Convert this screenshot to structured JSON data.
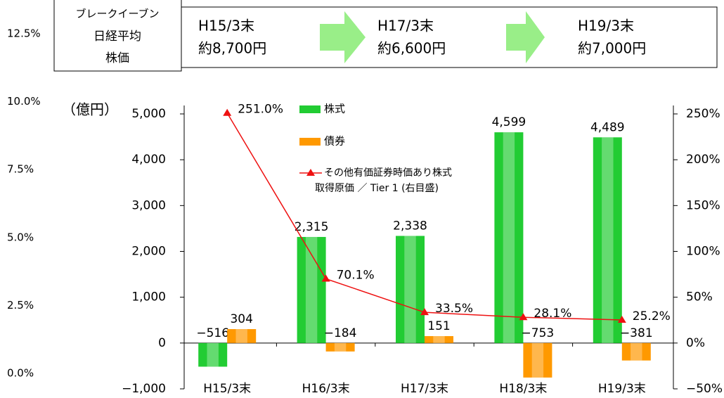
{
  "header": {
    "label_lines": [
      "ブレークイーブン",
      "日経平均",
      "株価"
    ],
    "stages": [
      {
        "period": "H15/3末",
        "price": "約8,700円"
      },
      {
        "period": "H17/3末",
        "price": "約6,600円"
      },
      {
        "period": "H19/3末",
        "price": "約7,000円"
      }
    ]
  },
  "chart_data": {
    "type": "bar",
    "y_unit": "（億円）",
    "categories": [
      "H15/3末",
      "H16/3末",
      "H17/3末",
      "H18/3末",
      "H19/3末"
    ],
    "series": [
      {
        "name": "株式",
        "color": "#22cc33",
        "values": [
          -516,
          2315,
          2338,
          4599,
          4489
        ],
        "value_labels": [
          "−516",
          "2,315",
          "2,338",
          "4,599",
          "4,489"
        ]
      },
      {
        "name": "債券",
        "color": "#ff9900",
        "values": [
          304,
          -184,
          151,
          -753,
          -381
        ],
        "value_labels": [
          "304",
          "−184",
          "151",
          "−753",
          "−381"
        ]
      },
      {
        "name": "その他有価証券時価あり株式\n取得原価 ／ Tier 1 (右目盛)",
        "type": "line",
        "axis": "y2",
        "color": "#ee1111",
        "values": [
          251.0,
          70.1,
          33.5,
          28.1,
          25.2
        ],
        "value_labels": [
          "251.0%",
          "70.1%",
          "33.5%",
          "28.1%",
          "25.2%"
        ]
      }
    ],
    "ylim": [
      -1000,
      5000
    ],
    "yticks": [
      {
        "value": -1000,
        "label": "−1,000"
      },
      0,
      {
        "value": 1000,
        "label": "1,000"
      },
      {
        "value": 2000,
        "label": "2,000"
      },
      {
        "value": 3000,
        "label": "3,000"
      },
      {
        "value": 4000,
        "label": "4,000"
      },
      {
        "value": 5000,
        "label": "5,000"
      }
    ],
    "y2lim": [
      -50,
      250
    ],
    "y2ticks": [
      {
        "value": -50,
        "label": "−50%"
      },
      {
        "value": 0,
        "label": "0%"
      },
      {
        "value": 50,
        "label": "50%"
      },
      {
        "value": 100,
        "label": "100%"
      },
      {
        "value": 150,
        "label": "150%"
      },
      {
        "value": 200,
        "label": "200%"
      },
      {
        "value": 250,
        "label": "250%"
      }
    ],
    "y3lim": [
      0,
      12.5
    ],
    "y3ticks": [
      {
        "value": 0,
        "label": "0.0%"
      },
      {
        "value": 2.5,
        "label": "2.5%"
      },
      {
        "value": 5,
        "label": "5.0%"
      },
      {
        "value": 7.5,
        "label": "7.5%"
      },
      {
        "value": 10,
        "label": "10.0%"
      },
      {
        "value": 12.5,
        "label": "12.5%"
      }
    ]
  }
}
